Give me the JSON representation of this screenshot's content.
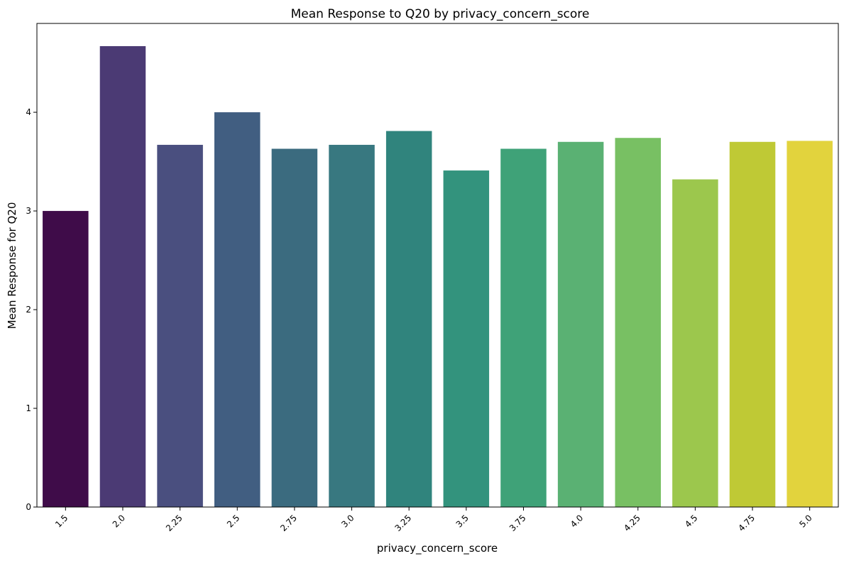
{
  "chart_data": {
    "type": "bar",
    "title": "Mean Response to Q20 by privacy_concern_score",
    "xlabel": "privacy_concern_score",
    "ylabel": "Mean Response for Q20",
    "categories": [
      "1.5",
      "2.0",
      "2.25",
      "2.5",
      "2.75",
      "3.0",
      "3.25",
      "3.5",
      "3.75",
      "4.0",
      "4.25",
      "4.5",
      "4.75",
      "5.0"
    ],
    "values": [
      3.0,
      4.67,
      3.67,
      4.0,
      3.63,
      3.67,
      3.81,
      3.41,
      3.63,
      3.7,
      3.74,
      3.32,
      3.7,
      3.71
    ],
    "colors": [
      "#440154",
      "#482878",
      "#3e4989",
      "#31688e",
      "#26828e",
      "#1f9e89",
      "#35b779",
      "#6ece58",
      "#b5de2b",
      "#fde725",
      "#440154",
      "#482878",
      "#3e4989",
      "#31688e"
    ],
    "palette": [
      "#3f0c49",
      "#4b3a74",
      "#4a4f7f",
      "#415e81",
      "#3b6b7f",
      "#387880",
      "#30847d",
      "#33937d",
      "#3fa278",
      "#5ab173",
      "#78c063",
      "#9cc74d",
      "#bfc935",
      "#e2d33d"
    ],
    "ylim": [
      0,
      4.9
    ],
    "yticks": [
      0,
      1,
      2,
      3,
      4
    ],
    "grid": false,
    "legend": "none"
  }
}
